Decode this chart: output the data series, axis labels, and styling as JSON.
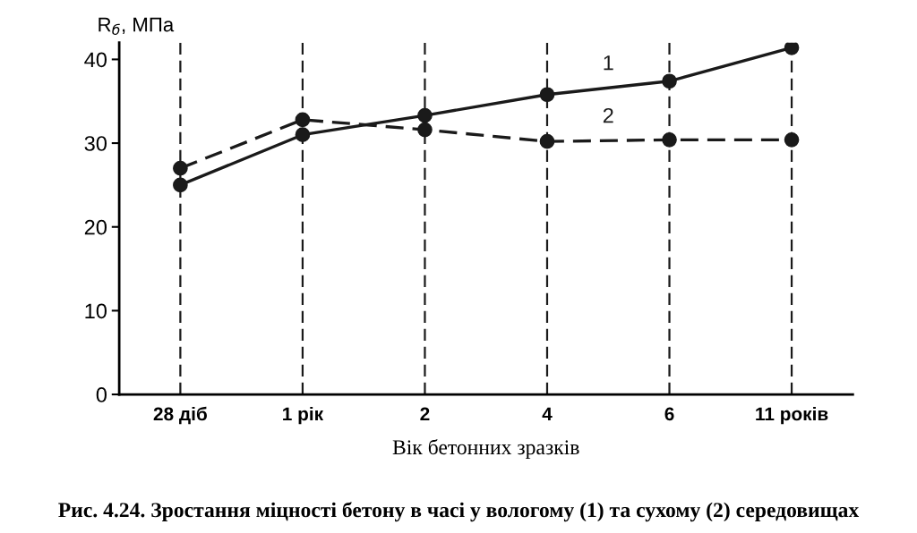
{
  "chart_data": {
    "type": "line",
    "ylabel": "R$_{б}$, МПа",
    "xlabel": "Вік бетонних зразків",
    "annotations": [
      "Рис. 4.24. Зростання міцності бетону в часі у вологому (1) та сухому (2) середовищах"
    ],
    "categories": [
      "28 діб",
      "1 рік",
      "2",
      "4",
      "6",
      "11 років"
    ],
    "series": [
      {
        "name": "1",
        "color": "#1a1a1a",
        "line_style": "solid",
        "values": [
          25,
          31,
          33.3,
          35.8,
          37.4,
          41.4
        ]
      },
      {
        "name": "2",
        "color": "#1a1a1a",
        "line_style": "dashed",
        "values": [
          27,
          32.8,
          31.6,
          30.2,
          30.4,
          30.4
        ]
      }
    ],
    "ylim": [
      0,
      42
    ],
    "yticks": [
      0,
      10,
      20,
      30,
      40
    ],
    "ref_lines": [
      {
        "axis": "x",
        "value": "28 діб",
        "line_style": "dashed",
        "color": "#1a1a1a"
      },
      {
        "axis": "x",
        "value": "1 рік",
        "line_style": "dashed",
        "color": "#1a1a1a"
      },
      {
        "axis": "x",
        "value": "2",
        "line_style": "dashed",
        "color": "#1a1a1a"
      },
      {
        "axis": "x",
        "value": "4",
        "line_style": "dashed",
        "color": "#1a1a1a"
      },
      {
        "axis": "x",
        "value": "6",
        "line_style": "dashed",
        "color": "#1a1a1a"
      },
      {
        "axis": "x",
        "value": "11 років",
        "line_style": "dashed",
        "color": "#1a1a1a"
      }
    ],
    "marker": "circle",
    "grid": false,
    "legend": false
  }
}
